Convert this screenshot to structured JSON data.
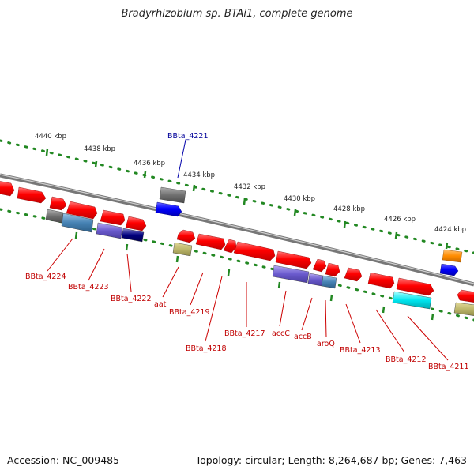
{
  "title": "Bradyrhizobium sp. BTAi1, complete genome",
  "footer": {
    "accession": "Accession: NC_009485",
    "topology": "Topology: circular; Length: 8,264,687 bp; Genes: 7,463"
  },
  "colors": {
    "gene_red": "#ff0000",
    "label_red": "#c00000",
    "label_blue": "#000099",
    "tick_green": "#228822",
    "backbone": "#888888"
  },
  "ruler": [
    "4440 kbp",
    "4438 kbp",
    "4436 kbp",
    "4434 kbp",
    "4432 kbp",
    "4430 kbp",
    "4428 kbp",
    "4426 kbp",
    "4424 kbp"
  ],
  "gene_labels": [
    {
      "text": "BBta_4221",
      "color": "blue"
    },
    {
      "text": "BBta_4224",
      "color": "red"
    },
    {
      "text": "BBta_4223",
      "color": "red"
    },
    {
      "text": "BBta_4222",
      "color": "red"
    },
    {
      "text": "aat",
      "color": "red"
    },
    {
      "text": "BBta_4219",
      "color": "red"
    },
    {
      "text": "BBta_4218",
      "color": "red"
    },
    {
      "text": "BBta_4217",
      "color": "red"
    },
    {
      "text": "accC",
      "color": "red"
    },
    {
      "text": "accB",
      "color": "red"
    },
    {
      "text": "aroQ",
      "color": "red"
    },
    {
      "text": "BBta_4213",
      "color": "red"
    },
    {
      "text": "BBta_4212",
      "color": "red"
    },
    {
      "text": "BBta_4211",
      "color": "red"
    }
  ]
}
